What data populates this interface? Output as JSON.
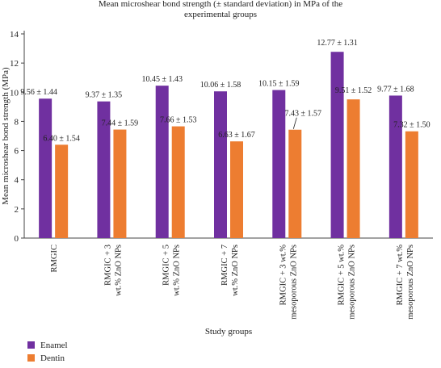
{
  "chart_data": {
    "type": "bar",
    "title_lines": [
      "Mean microshear bond strength (± standard deviation) in MPa of the",
      "experimental groups"
    ],
    "xlabel": "Study groups",
    "ylabel": "Mean microshear bond strength (MPa)",
    "ylim": [
      0,
      14
    ],
    "yticks": [
      0,
      2,
      4,
      6,
      8,
      10,
      12,
      14
    ],
    "grid": false,
    "legend_position": "bottom-left",
    "categories": [
      [
        "RMGIC"
      ],
      [
        "RMGIC + 3",
        "wt.% ZnO NPs"
      ],
      [
        "RMGIC + 5",
        "wt.% ZnO NPs"
      ],
      [
        "RMGIC + 7",
        "wt.% ZnO NPs"
      ],
      [
        "RMGIC + 3 wt.%",
        "mesoporous ZnO NPs"
      ],
      [
        "RMGIC + 5 wt.%",
        "mesoporous ZnO NPs"
      ],
      [
        "RMGIC + 7 wt.%",
        "mesoporous ZnO NPs"
      ]
    ],
    "series": [
      {
        "name": "Enamel",
        "color": "#7030a0",
        "values": [
          9.56,
          9.37,
          10.45,
          10.06,
          10.15,
          12.77,
          9.77
        ],
        "labels": [
          "9.56 ± 1.44",
          "9.37 ± 1.35",
          "10.45 ± 1.43",
          "10.06 ± 1.58",
          "10.15 ± 1.59",
          "12.77 ± 1.31",
          "9.77 ± 1.68"
        ]
      },
      {
        "name": "Dentin",
        "color": "#ed7d31",
        "values": [
          6.4,
          7.44,
          7.66,
          6.63,
          7.43,
          9.51,
          7.32
        ],
        "labels": [
          "6.40 ± 1.54",
          "7.44 ± 1.59",
          "7.66 ± 1.53",
          "6.63 ± 1.67",
          "7.43 ± 1.57",
          "9.51 ± 1.52",
          "7.32 ± 1.50"
        ]
      }
    ]
  }
}
